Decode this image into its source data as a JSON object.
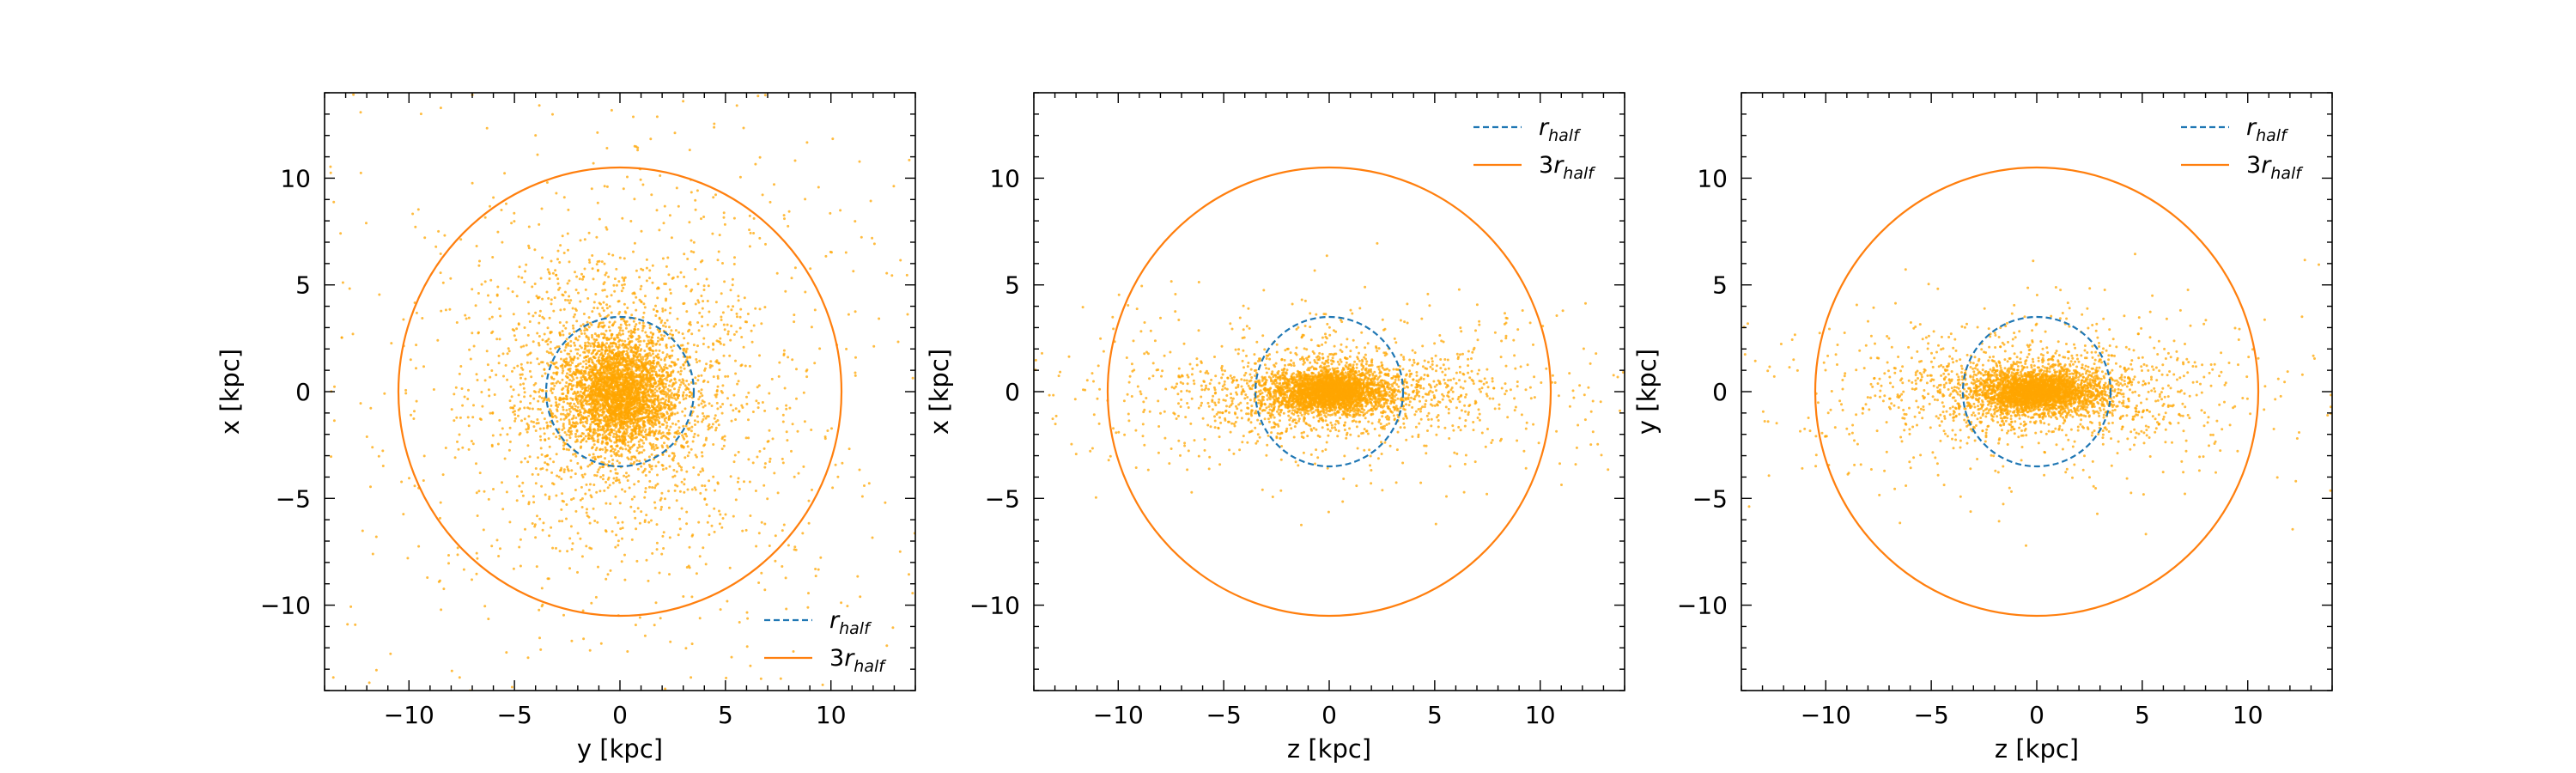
{
  "chart_data": [
    {
      "type": "scatter",
      "xlabel": "y [kpc]",
      "ylabel": "x [kpc]",
      "xlim": [
        -14,
        14
      ],
      "ylim": [
        -14,
        14
      ],
      "xticks": [
        -10,
        -5,
        0,
        5,
        10
      ],
      "yticks": [
        -10,
        -5,
        0,
        5,
        10
      ],
      "xtick_labels": [
        "−10",
        "−5",
        "0",
        "5",
        "10"
      ],
      "ytick_labels": [
        "−10",
        "−5",
        "0",
        "5",
        "10"
      ],
      "grid": false,
      "legend_position": "bottom-right",
      "points": {
        "color": "#ffa500",
        "distribution": "nearly round, concentrated near centre",
        "scale_x": 1,
        "scale_y": 1
      },
      "circles": [
        {
          "name": "r_half",
          "radius": 3.5,
          "center": [
            0,
            0
          ],
          "style": "dashed",
          "color": "#1f77b4"
        },
        {
          "name": "3r_half",
          "radius": 10.5,
          "center": [
            0,
            0
          ],
          "style": "solid",
          "color": "#ff7f0e"
        }
      ],
      "legend": [
        {
          "main": "r",
          "sub": "half",
          "style": "dashed",
          "color": "#1f77b4"
        },
        {
          "main": "3r",
          "sub": "half",
          "style": "solid",
          "color": "#ff7f0e"
        }
      ]
    },
    {
      "type": "scatter",
      "xlabel": "z [kpc]",
      "ylabel": "x [kpc]",
      "xlim": [
        -14,
        14
      ],
      "ylim": [
        -14,
        14
      ],
      "xticks": [
        -10,
        -5,
        0,
        5,
        10
      ],
      "yticks": [
        -10,
        -5,
        0,
        5,
        10
      ],
      "xtick_labels": [
        "−10",
        "−5",
        "0",
        "5",
        "10"
      ],
      "ytick_labels": [
        "−10",
        "−5",
        "0",
        "5",
        "10"
      ],
      "grid": false,
      "legend_position": "top-right",
      "points": {
        "color": "#ffa500",
        "distribution": "flattened disk along the horizontal axis",
        "scale_x": 1,
        "scale_y": 0.3
      },
      "circles": [
        {
          "name": "r_half",
          "radius": 3.5,
          "center": [
            0,
            0
          ],
          "style": "dashed",
          "color": "#1f77b4"
        },
        {
          "name": "3r_half",
          "radius": 10.5,
          "center": [
            0,
            0
          ],
          "style": "solid",
          "color": "#ff7f0e"
        }
      ],
      "legend": [
        {
          "main": "r",
          "sub": "half",
          "style": "dashed",
          "color": "#1f77b4"
        },
        {
          "main": "3r",
          "sub": "half",
          "style": "solid",
          "color": "#ff7f0e"
        }
      ]
    },
    {
      "type": "scatter",
      "xlabel": "z [kpc]",
      "ylabel": "y [kpc]",
      "xlim": [
        -14,
        14
      ],
      "ylim": [
        -14,
        14
      ],
      "xticks": [
        -10,
        -5,
        0,
        5,
        10
      ],
      "yticks": [
        -10,
        -5,
        0,
        5,
        10
      ],
      "xtick_labels": [
        "−10",
        "−5",
        "0",
        "5",
        "10"
      ],
      "ytick_labels": [
        "−10",
        "−5",
        "0",
        "5",
        "10"
      ],
      "grid": false,
      "legend_position": "top-right",
      "points": {
        "color": "#ffa500",
        "distribution": "flattened disk along the horizontal axis",
        "scale_x": 1,
        "scale_y": 0.3
      },
      "circles": [
        {
          "name": "r_half",
          "radius": 3.5,
          "center": [
            0,
            0
          ],
          "style": "dashed",
          "color": "#1f77b4"
        },
        {
          "name": "3r_half",
          "radius": 10.5,
          "center": [
            0,
            0
          ],
          "style": "solid",
          "color": "#ff7f0e"
        }
      ],
      "legend": [
        {
          "main": "r",
          "sub": "half",
          "style": "dashed",
          "color": "#1f77b4"
        },
        {
          "main": "3r",
          "sub": "half",
          "style": "solid",
          "color": "#ff7f0e"
        }
      ]
    }
  ]
}
